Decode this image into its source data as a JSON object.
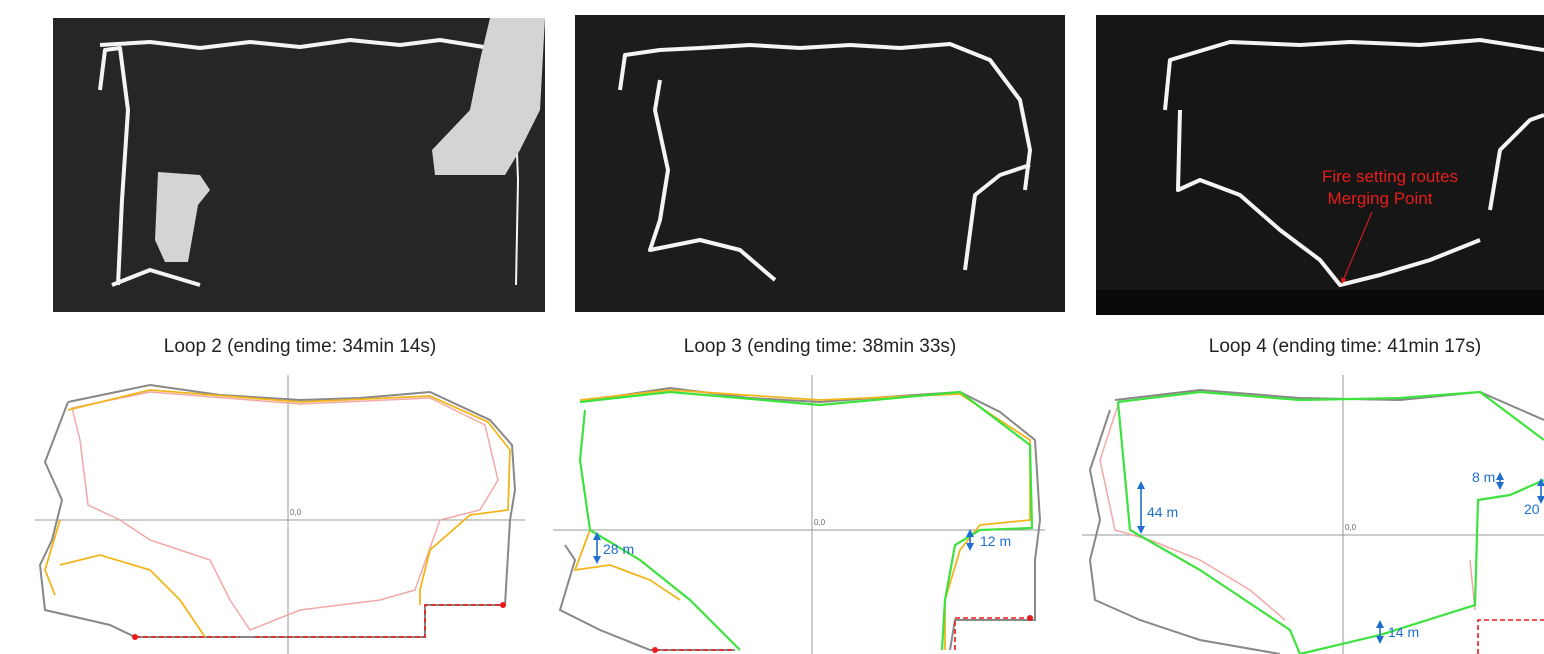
{
  "panels": [
    {
      "caption": "Loop 2 (ending time: 34min 14s)",
      "origin_label": "0,0"
    },
    {
      "caption": "Loop 3 (ending time: 38min 33s)",
      "origin_label": "0,0",
      "measurements": [
        "28 m",
        "12 m"
      ]
    },
    {
      "caption": "Loop 4 (ending time: 41min 17s)",
      "image_annotation": [
        "Fire setting routes",
        "Merging Point"
      ],
      "origin_label": "0,0",
      "measurements": [
        "44 m",
        "8 m",
        "20",
        "14 m"
      ]
    }
  ]
}
